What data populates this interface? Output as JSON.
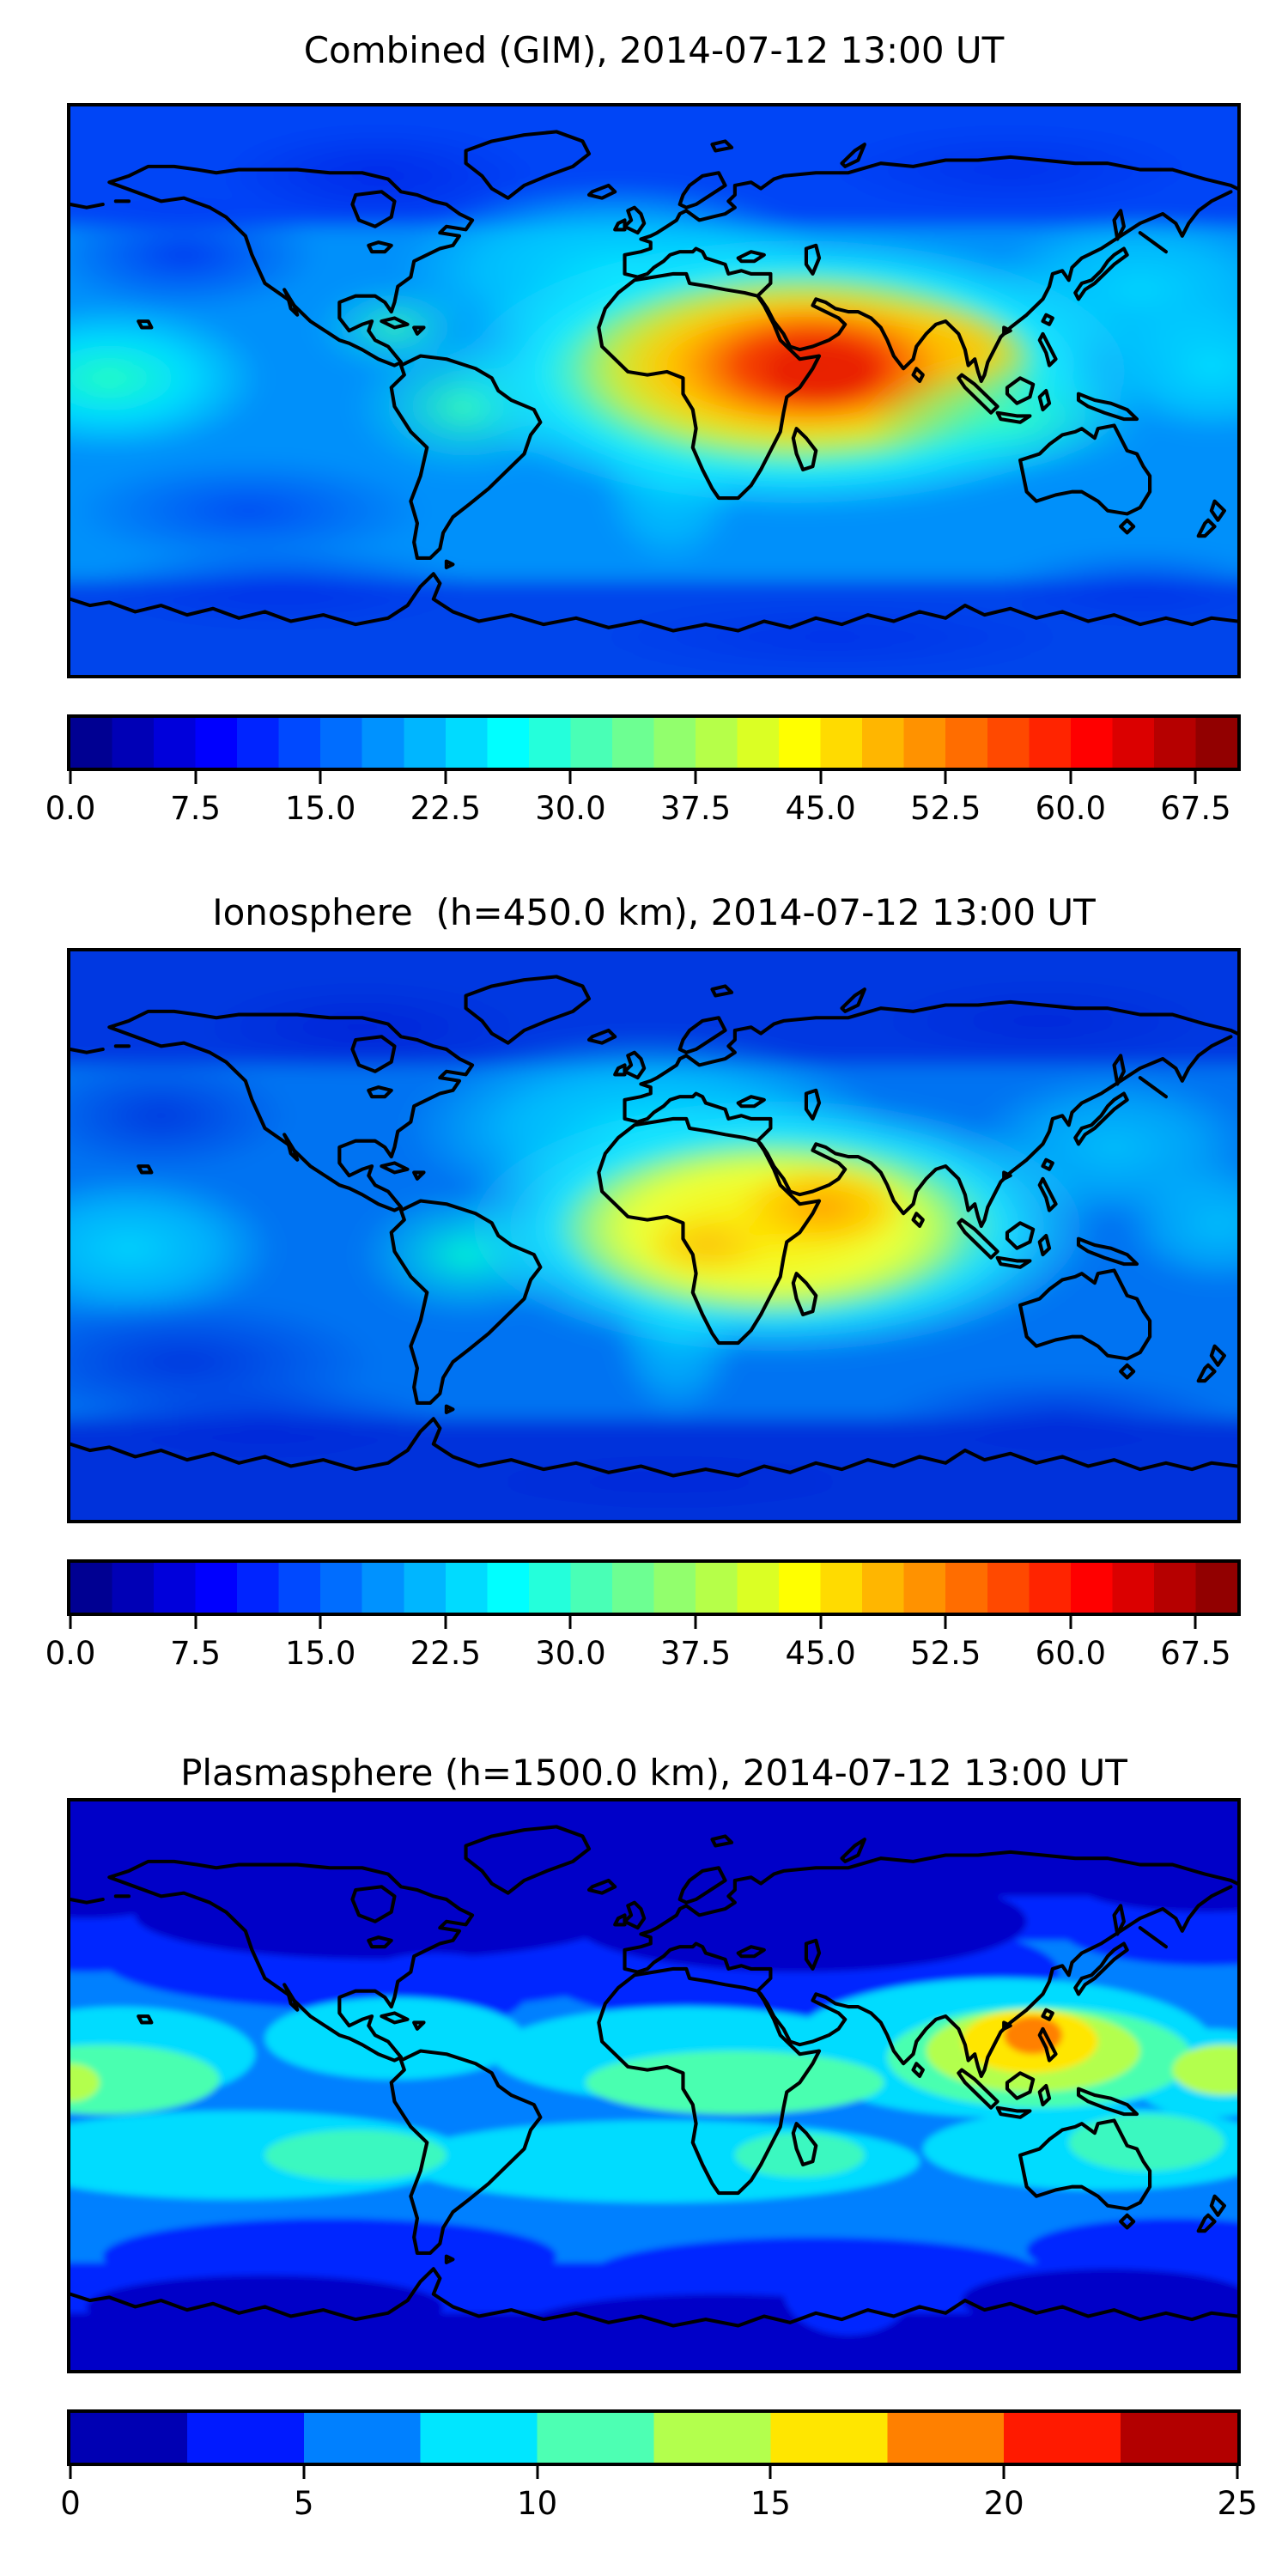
{
  "figure": {
    "background": "#ffffff",
    "panels": [
      {
        "id": "combined",
        "title": "Combined (GIM), 2014-07-12 13:00 UT",
        "colorbar": {
          "min": 0,
          "max": 70,
          "tick_values": [
            0,
            7.5,
            15,
            22.5,
            30,
            37.5,
            45,
            52.5,
            60,
            67.5
          ],
          "tick_labels": [
            "0.0",
            "7.5",
            "15.0",
            "22.5",
            "30.0",
            "37.5",
            "45.0",
            "52.5",
            "60.0",
            "67.5"
          ],
          "segment_colors": [
            "#000092",
            "#0000b6",
            "#0000db",
            "#0000ff",
            "#0024ff",
            "#0049ff",
            "#006dff",
            "#0092ff",
            "#00b6ff",
            "#00dbff",
            "#00ffff",
            "#24ffdb",
            "#49ffb6",
            "#6dff92",
            "#92ff6d",
            "#b6ff49",
            "#dbff24",
            "#ffff00",
            "#ffdb00",
            "#ffb600",
            "#ff9200",
            "#ff6d00",
            "#ff4900",
            "#ff2400",
            "#ff0000",
            "#db0000",
            "#b60000",
            "#920000"
          ]
        }
      },
      {
        "id": "ionosphere",
        "title": "Ionosphere  (h=450.0 km), 2014-07-12 13:00 UT",
        "colorbar": {
          "min": 0,
          "max": 70,
          "tick_values": [
            0,
            7.5,
            15,
            22.5,
            30,
            37.5,
            45,
            52.5,
            60,
            67.5
          ],
          "tick_labels": [
            "0.0",
            "7.5",
            "15.0",
            "22.5",
            "30.0",
            "37.5",
            "45.0",
            "52.5",
            "60.0",
            "67.5"
          ],
          "segment_colors": [
            "#000092",
            "#0000b6",
            "#0000db",
            "#0000ff",
            "#0024ff",
            "#0049ff",
            "#006dff",
            "#0092ff",
            "#00b6ff",
            "#00dbff",
            "#00ffff",
            "#24ffdb",
            "#49ffb6",
            "#6dff92",
            "#92ff6d",
            "#b6ff49",
            "#dbff24",
            "#ffff00",
            "#ffdb00",
            "#ffb600",
            "#ff9200",
            "#ff6d00",
            "#ff4900",
            "#ff2400",
            "#ff0000",
            "#db0000",
            "#b60000",
            "#920000"
          ]
        }
      },
      {
        "id": "plasmasphere",
        "title": "Plasmasphere (h=1500.0 km), 2014-07-12 13:00 UT",
        "colorbar": {
          "min": 0,
          "max": 25,
          "tick_values": [
            0,
            5,
            10,
            15,
            20,
            25
          ],
          "tick_labels": [
            "0",
            "5",
            "10",
            "15",
            "20",
            "25"
          ],
          "segment_colors": [
            "#0000b3",
            "#001aff",
            "#0080ff",
            "#00e6ff",
            "#4dffb3",
            "#b3ff4d",
            "#ffe600",
            "#ff8000",
            "#ff1a00",
            "#b30000"
          ]
        }
      }
    ]
  },
  "chart_data": [
    {
      "type": "heatmap",
      "title": "Combined (GIM), 2014-07-12 13:00 UT",
      "projection": "equirectangular world map, lon -180..180 (x), lat 90..-90 (y)",
      "colormap": "jet",
      "value_range": [
        0,
        70
      ],
      "contour_interval": 2.5,
      "colorbar_ticks": [
        0,
        7.5,
        15,
        22.5,
        30,
        37.5,
        45,
        52.5,
        60,
        67.5
      ],
      "legend_position": "horizontal colorbar below map",
      "lons": [
        -180,
        -150,
        -120,
        -90,
        -60,
        -30,
        0,
        30,
        60,
        90,
        120,
        150,
        180
      ],
      "lats": [
        90,
        60,
        30,
        0,
        -30,
        -60,
        -90
      ],
      "values_grid": [
        [
          12,
          12,
          12,
          13,
          14,
          15,
          15,
          15,
          14,
          13,
          12,
          12,
          12
        ],
        [
          10,
          10,
          11,
          12,
          16,
          20,
          22,
          22,
          20,
          17,
          14,
          11,
          10
        ],
        [
          16,
          14,
          14,
          16,
          22,
          30,
          40,
          50,
          52,
          38,
          26,
          20,
          16
        ],
        [
          22,
          20,
          22,
          28,
          35,
          45,
          58,
          66,
          62,
          45,
          32,
          25,
          22
        ],
        [
          14,
          12,
          12,
          18,
          26,
          30,
          33,
          35,
          32,
          26,
          16,
          13,
          14
        ],
        [
          10,
          9,
          9,
          10,
          12,
          14,
          15,
          16,
          15,
          13,
          11,
          10,
          10
        ],
        [
          8,
          8,
          8,
          8,
          9,
          10,
          10,
          10,
          10,
          9,
          8,
          8,
          8
        ]
      ],
      "features": [
        "Maximum ~66-68 (dark red) centered near Horn of Africa / Gulf of Aden (~45E, ~8N)",
        "Warm yellow-orange ridge spans North Africa to India along low latitudes",
        "Cyan-green secondary enhancement over Caribbean and northern South America",
        "Blue minima over high northern latitudes, south Pacific and Antarctica"
      ]
    },
    {
      "type": "heatmap",
      "title": "Ionosphere  (h=450.0 km), 2014-07-12 13:00 UT",
      "projection": "equirectangular world map, lon -180..180 (x), lat 90..-90 (y)",
      "colormap": "jet",
      "value_range": [
        0,
        70
      ],
      "contour_interval": 2.5,
      "colorbar_ticks": [
        0,
        7.5,
        15,
        22.5,
        30,
        37.5,
        45,
        52.5,
        60,
        67.5
      ],
      "legend_position": "horizontal colorbar below map",
      "lons": [
        -180,
        -150,
        -120,
        -90,
        -60,
        -30,
        0,
        30,
        60,
        90,
        120,
        150,
        180
      ],
      "lats": [
        90,
        60,
        30,
        0,
        -30,
        -60,
        -90
      ],
      "values_grid": [
        [
          8,
          8,
          8,
          9,
          10,
          11,
          12,
          12,
          11,
          10,
          9,
          8,
          8
        ],
        [
          7,
          7,
          8,
          9,
          12,
          16,
          18,
          18,
          16,
          13,
          10,
          8,
          7
        ],
        [
          11,
          10,
          10,
          12,
          17,
          24,
          32,
          40,
          42,
          30,
          18,
          13,
          11
        ],
        [
          16,
          14,
          16,
          21,
          27,
          35,
          44,
          50,
          47,
          36,
          24,
          18,
          16
        ],
        [
          10,
          9,
          9,
          13,
          20,
          24,
          26,
          28,
          25,
          20,
          12,
          10,
          10
        ],
        [
          7,
          6,
          6,
          7,
          9,
          10,
          11,
          12,
          11,
          10,
          8,
          7,
          7
        ],
        [
          5,
          5,
          5,
          5,
          6,
          7,
          7,
          7,
          7,
          6,
          5,
          5,
          5
        ]
      ],
      "features": [
        "Same spatial pattern as combined map but weaker: peak ~50 (orange) near Arabia / Horn of Africa",
        "Yellow lobe over central-north Africa, broad cyan over Europe and North Atlantic",
        "Cyan tongue extends south through the Atlantic toward Antarctica",
        "Dark blue minima over polar caps and south Pacific"
      ]
    },
    {
      "type": "heatmap",
      "title": "Plasmasphere (h=1500.0 km), 2014-07-12 13:00 UT",
      "projection": "equirectangular world map, lon -180..180 (x), lat 90..-90 (y)",
      "colormap": "jet",
      "value_range": [
        0,
        25
      ],
      "contour_interval": 2.5,
      "colorbar_ticks": [
        0,
        5,
        10,
        15,
        20,
        25
      ],
      "legend_position": "horizontal colorbar below map",
      "lons": [
        -180,
        -150,
        -120,
        -90,
        -60,
        -30,
        0,
        30,
        60,
        90,
        120,
        150,
        180
      ],
      "lats": [
        90,
        60,
        30,
        0,
        -30,
        -60,
        -90
      ],
      "values_grid": [
        [
          3,
          3,
          3,
          3,
          3,
          3,
          4,
          4,
          4,
          4,
          3,
          3,
          3
        ],
        [
          3,
          3,
          3,
          3,
          2,
          2,
          3,
          4,
          5,
          6,
          6,
          5,
          3
        ],
        [
          7,
          6,
          5,
          5,
          6,
          7,
          8,
          9,
          11,
          14,
          20,
          14,
          8
        ],
        [
          13,
          11,
          10,
          10,
          11,
          12,
          13,
          13,
          14,
          16,
          18,
          15,
          13
        ],
        [
          9,
          10,
          9,
          8,
          8,
          9,
          10,
          10,
          10,
          11,
          12,
          11,
          9
        ],
        [
          5,
          5,
          6,
          5,
          4,
          4,
          5,
          5,
          5,
          6,
          6,
          6,
          5
        ],
        [
          2,
          2,
          2,
          2,
          2,
          2,
          2,
          2,
          2,
          2,
          2,
          2,
          2
        ]
      ],
      "features": [
        "Wavy cyan-green bands flank the equator in both hemispheres",
        "Peak ~20 (orange core in yellow patch) over Southeast Asia / South China Sea (~112E, ~18N)",
        "Yellow-green band extends from the hotspot eastward to the map edge",
        "Dark navy minimum band across high northern latitudes and around Antarctica"
      ]
    }
  ]
}
